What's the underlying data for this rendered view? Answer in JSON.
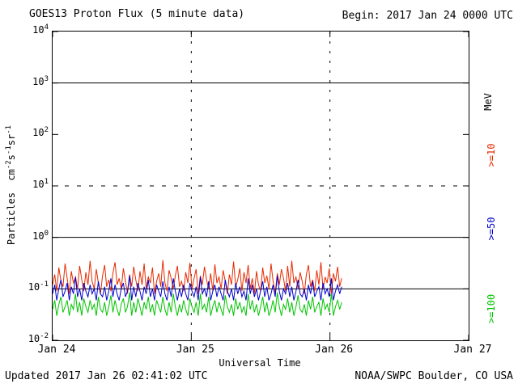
{
  "chart_data": {
    "type": "line",
    "title": "GOES13 Proton Flux (5 minute data)",
    "begin_label": "Begin: 2017 Jan 24 0000 UTC",
    "updated_label": "Updated 2017 Jan 26 02:41:02 UTC",
    "source_label": "NOAA/SWPC Boulder, CO USA",
    "xlabel": "Universal Time",
    "ylabel_parts": {
      "p1": "Particles  cm",
      "e1": "-2",
      "p2": "s",
      "e2": "-1",
      "p3": "sr",
      "e3": "-1"
    },
    "x_categories": [
      "Jan 24",
      "Jan 25",
      "Jan 26",
      "Jan 27"
    ],
    "x_range_days": [
      0,
      3
    ],
    "y_log_range": [
      -2,
      4
    ],
    "y_tick_exponents": [
      4,
      3,
      2,
      1,
      0,
      -1,
      -2
    ],
    "hlines": [
      {
        "log": 3,
        "dash": false
      },
      {
        "log": 1,
        "dash": true
      },
      {
        "log": 0,
        "dash": false
      },
      {
        "log": -1,
        "dash": false
      }
    ],
    "vlines_days": [
      1,
      2
    ],
    "right_labels": [
      {
        "text": "MeV",
        "color": "#000000"
      },
      {
        "text": ">=10",
        "color": "#e62a00"
      },
      {
        "text": ">=50",
        "color": "#0000cc"
      },
      {
        "text": ">=100",
        "color": "#00c400"
      }
    ],
    "series": [
      {
        "name": "ge10-MeV",
        "color": "#e62a00",
        "x_start": 0,
        "x_step": 0.015,
        "values": [
          0.12,
          0.19,
          0.09,
          0.26,
          0.14,
          0.11,
          0.31,
          0.16,
          0.08,
          0.22,
          0.13,
          0.17,
          0.1,
          0.28,
          0.15,
          0.09,
          0.21,
          0.12,
          0.35,
          0.14,
          0.1,
          0.24,
          0.13,
          0.08,
          0.18,
          0.29,
          0.11,
          0.15,
          0.09,
          0.2,
          0.33,
          0.12,
          0.16,
          0.1,
          0.25,
          0.14,
          0.08,
          0.19,
          0.11,
          0.27,
          0.15,
          0.09,
          0.22,
          0.12,
          0.31,
          0.1,
          0.17,
          0.13,
          0.26,
          0.08,
          0.14,
          0.2,
          0.11,
          0.36,
          0.13,
          0.09,
          0.23,
          0.16,
          0.1,
          0.18,
          0.28,
          0.11,
          0.14,
          0.09,
          0.21,
          0.13,
          0.32,
          0.1,
          0.16,
          0.24,
          0.08,
          0.18,
          0.12,
          0.27,
          0.15,
          0.1,
          0.2,
          0.09,
          0.3,
          0.13,
          0.17,
          0.1,
          0.23,
          0.14,
          0.08,
          0.19,
          0.12,
          0.34,
          0.11,
          0.15,
          0.25,
          0.09,
          0.21,
          0.13,
          0.29,
          0.1,
          0.16,
          0.08,
          0.22,
          0.12,
          0.09,
          0.26,
          0.13,
          0.18,
          0.1,
          0.31,
          0.14,
          0.08,
          0.2,
          0.12,
          0.24,
          0.16,
          0.09,
          0.28,
          0.11,
          0.35,
          0.13,
          0.17,
          0.1,
          0.21,
          0.14,
          0.08,
          0.19,
          0.29,
          0.11,
          0.15,
          0.09,
          0.23,
          0.12,
          0.33,
          0.1,
          0.17,
          0.13,
          0.25,
          0.08,
          0.2,
          0.14,
          0.27,
          0.11,
          0.16
        ]
      },
      {
        "name": "ge50-MeV",
        "color": "#0000cc",
        "x_start": 0,
        "x_step": 0.015,
        "values": [
          0.08,
          0.12,
          0.06,
          0.1,
          0.15,
          0.07,
          0.09,
          0.13,
          0.06,
          0.11,
          0.08,
          0.17,
          0.07,
          0.1,
          0.06,
          0.13,
          0.09,
          0.07,
          0.12,
          0.08,
          0.1,
          0.06,
          0.14,
          0.08,
          0.07,
          0.11,
          0.06,
          0.09,
          0.16,
          0.07,
          0.12,
          0.08,
          0.06,
          0.1,
          0.13,
          0.07,
          0.09,
          0.18,
          0.06,
          0.11,
          0.07,
          0.13,
          0.09,
          0.06,
          0.11,
          0.08,
          0.15,
          0.07,
          0.1,
          0.06,
          0.12,
          0.09,
          0.07,
          0.14,
          0.08,
          0.06,
          0.11,
          0.07,
          0.16,
          0.09,
          0.06,
          0.1,
          0.07,
          0.12,
          0.08,
          0.06,
          0.13,
          0.09,
          0.07,
          0.11,
          0.06,
          0.17,
          0.08,
          0.1,
          0.07,
          0.14,
          0.06,
          0.09,
          0.12,
          0.07,
          0.11,
          0.08,
          0.06,
          0.15,
          0.09,
          0.07,
          0.1,
          0.06,
          0.13,
          0.08,
          0.11,
          0.07,
          0.09,
          0.06,
          0.16,
          0.08,
          0.12,
          0.07,
          0.1,
          0.06,
          0.09,
          0.14,
          0.07,
          0.11,
          0.06,
          0.08,
          0.12,
          0.07,
          0.18,
          0.09,
          0.06,
          0.1,
          0.08,
          0.13,
          0.07,
          0.11,
          0.06,
          0.09,
          0.15,
          0.08,
          0.07,
          0.1,
          0.06,
          0.12,
          0.08,
          0.14,
          0.07,
          0.09,
          0.11,
          0.06,
          0.13,
          0.08,
          0.1,
          0.07,
          0.16,
          0.06,
          0.09,
          0.12,
          0.08,
          0.11
        ]
      },
      {
        "name": "ge100-MeV",
        "color": "#00c400",
        "x_start": 0,
        "x_step": 0.015,
        "values": [
          0.04,
          0.06,
          0.03,
          0.05,
          0.07,
          0.035,
          0.045,
          0.06,
          0.03,
          0.05,
          0.04,
          0.08,
          0.035,
          0.055,
          0.03,
          0.065,
          0.045,
          0.035,
          0.06,
          0.04,
          0.05,
          0.03,
          0.07,
          0.04,
          0.035,
          0.055,
          0.03,
          0.045,
          0.075,
          0.035,
          0.06,
          0.04,
          0.03,
          0.05,
          0.065,
          0.035,
          0.045,
          0.085,
          0.03,
          0.055,
          0.035,
          0.065,
          0.045,
          0.03,
          0.055,
          0.04,
          0.07,
          0.035,
          0.05,
          0.03,
          0.06,
          0.045,
          0.035,
          0.07,
          0.04,
          0.03,
          0.055,
          0.035,
          0.08,
          0.045,
          0.03,
          0.05,
          0.035,
          0.06,
          0.04,
          0.03,
          0.065,
          0.045,
          0.035,
          0.055,
          0.03,
          0.08,
          0.04,
          0.05,
          0.035,
          0.07,
          0.03,
          0.045,
          0.06,
          0.035,
          0.055,
          0.04,
          0.03,
          0.075,
          0.045,
          0.035,
          0.05,
          0.03,
          0.065,
          0.04,
          0.055,
          0.035,
          0.045,
          0.03,
          0.08,
          0.04,
          0.06,
          0.035,
          0.05,
          0.03,
          0.045,
          0.07,
          0.035,
          0.055,
          0.03,
          0.04,
          0.06,
          0.035,
          0.085,
          0.045,
          0.03,
          0.05,
          0.04,
          0.065,
          0.035,
          0.055,
          0.03,
          0.045,
          0.075,
          0.04,
          0.035,
          0.05,
          0.03,
          0.06,
          0.04,
          0.07,
          0.035,
          0.045,
          0.055,
          0.03,
          0.065,
          0.04,
          0.05,
          0.035,
          0.08,
          0.03,
          0.045,
          0.06,
          0.04,
          0.055
        ]
      }
    ]
  }
}
